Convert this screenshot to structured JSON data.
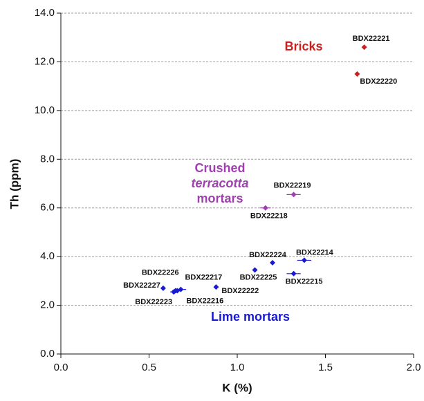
{
  "chart_data": {
    "type": "scatter",
    "x_label": "K (%)",
    "y_label": "Th (ppm)",
    "xlim": [
      0,
      2
    ],
    "ylim": [
      0,
      14
    ],
    "xticks": [
      {
        "value": 0,
        "label": "0.0"
      },
      {
        "value": 0.5,
        "label": "0.5"
      },
      {
        "value": 1,
        "label": "1.0"
      },
      {
        "value": 1.5,
        "label": "1.5"
      },
      {
        "value": 2,
        "label": "2.0"
      }
    ],
    "yticks": [
      {
        "value": 0,
        "label": "0.0"
      },
      {
        "value": 2,
        "label": "2.0"
      },
      {
        "value": 4,
        "label": "4.0"
      },
      {
        "value": 6,
        "label": "6.0"
      },
      {
        "value": 8,
        "label": "8.0"
      },
      {
        "value": 10,
        "label": "10.0"
      },
      {
        "value": 12,
        "label": "12.0"
      },
      {
        "value": 14,
        "label": "14.0"
      }
    ],
    "grid": true,
    "series": [
      {
        "name": "Bricks",
        "color": "#cc1f1f",
        "x": [
          1.72,
          1.68
        ],
        "values": [
          12.6,
          11.5
        ],
        "xerr": [
          0.01,
          0.01
        ],
        "point_labels": [
          "BDX22221",
          "BDX22220"
        ]
      },
      {
        "name": [
          "Crushed",
          "terracotta",
          "mortars"
        ],
        "color": "#a040b0",
        "x": [
          1.32,
          1.16
        ],
        "values": [
          6.55,
          6.0
        ],
        "xerr": [
          0.04,
          0.03
        ],
        "point_labels": [
          "BDX22219",
          "BDX22218"
        ]
      },
      {
        "name": "Lime mortars",
        "color": "#1a1ad0",
        "x": [
          1.38,
          1.2,
          1.1,
          1.32,
          0.88,
          0.58,
          0.65,
          0.68,
          0.64,
          0.66
        ],
        "values": [
          3.85,
          3.75,
          3.45,
          3.3,
          2.75,
          2.7,
          2.6,
          2.65,
          2.55,
          2.6
        ],
        "xerr": [
          0.04,
          0.01,
          0.01,
          0.04,
          0.01,
          0.01,
          0.02,
          0.03,
          0.02,
          0.02
        ],
        "point_labels": [
          "BDX22214",
          "BDX22224",
          "BDX22225",
          "BDX22215",
          "BDX22222",
          "BDX22227",
          "BDX22226",
          "BDX22217",
          "BDX22223",
          "BDX22216"
        ]
      }
    ]
  }
}
